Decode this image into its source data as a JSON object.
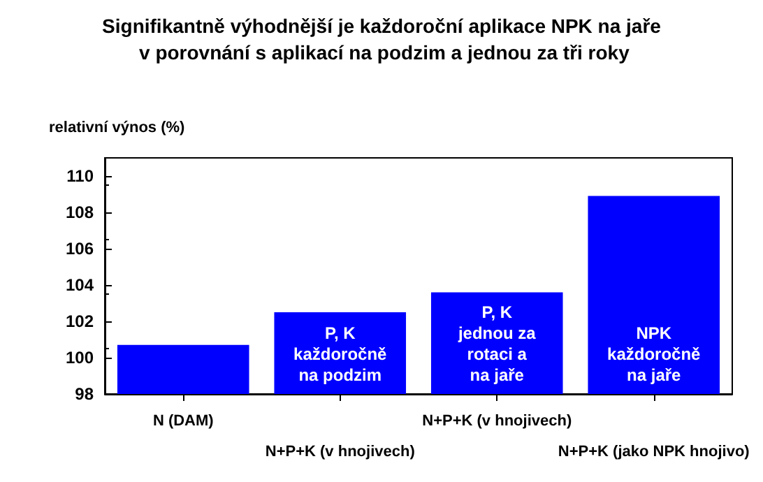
{
  "chart_data": {
    "type": "bar",
    "title": "Signifikantně výhodnější je každoroční aplikace NPK na jaře v porovnání s aplikací na podzim a jednou za tři roky",
    "ylabel": "relativní výnos (%)",
    "categories": [
      "N (DAM)",
      "N+P+K (v hnojivech)",
      "N+P+K (v hnojivech)",
      "N+P+K (jako NPK hnojivo)"
    ],
    "values": [
      100.7,
      102.5,
      103.6,
      108.9
    ],
    "color": "#0000ff",
    "ylim": [
      98,
      111
    ],
    "yticks": [
      98,
      100,
      102,
      104,
      106,
      108,
      110
    ],
    "grid": false,
    "annotations": [
      "P, K\nkaždoročně\nna podzim",
      "P, K\njednou za\nrotaci a\nna jaře",
      "NPK\nkaždoročně\nna jaře"
    ]
  }
}
